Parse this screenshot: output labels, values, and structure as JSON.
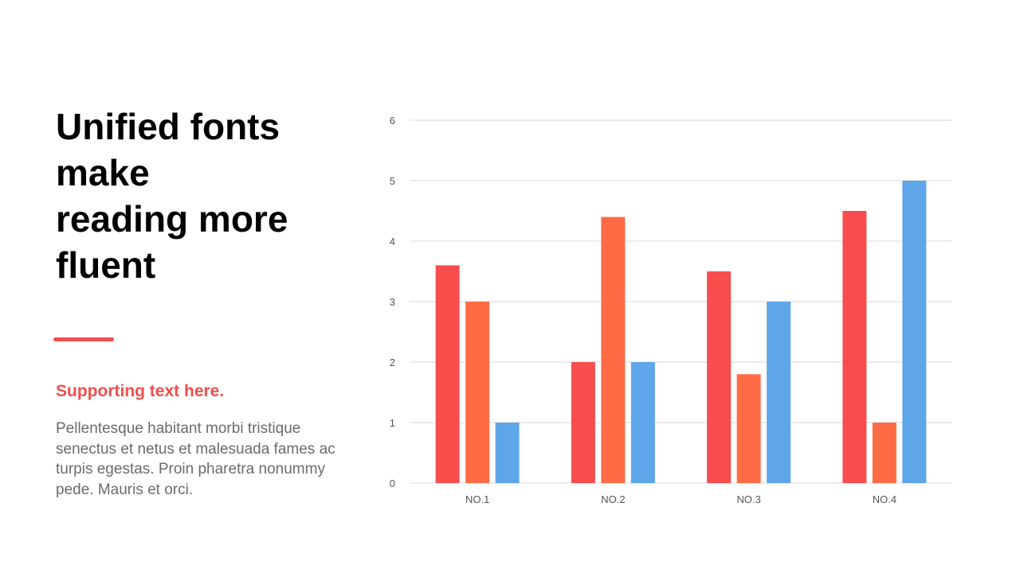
{
  "slide": {
    "title": "Unified fonts make\nreading more fluent",
    "subtitle": "Supporting text here.",
    "body": "Pellentesque habitant morbi tristique senectus et netus et malesuada fames ac turpis egestas. Proin pharetra nonummy pede. Mauris et orci."
  },
  "colors": {
    "accent": "#f04e4e",
    "series": [
      "#f74d4d",
      "#ff6b45",
      "#5ea5ea"
    ],
    "grid": "#d9d9d9",
    "axis_text": "#555555"
  },
  "chart_data": {
    "type": "bar",
    "categories": [
      "NO.1",
      "NO.2",
      "NO.3",
      "NO.4"
    ],
    "series": [
      {
        "values": [
          3.6,
          2,
          3.5,
          4.5
        ]
      },
      {
        "values": [
          3,
          4.4,
          1.8,
          1
        ]
      },
      {
        "values": [
          1,
          2,
          3,
          5
        ]
      }
    ],
    "ylim": [
      0,
      6
    ],
    "yticks": [
      0,
      1,
      2,
      3,
      4,
      5,
      6
    ],
    "grid": true,
    "legend": "none",
    "title": "",
    "xlabel": "",
    "ylabel": ""
  }
}
